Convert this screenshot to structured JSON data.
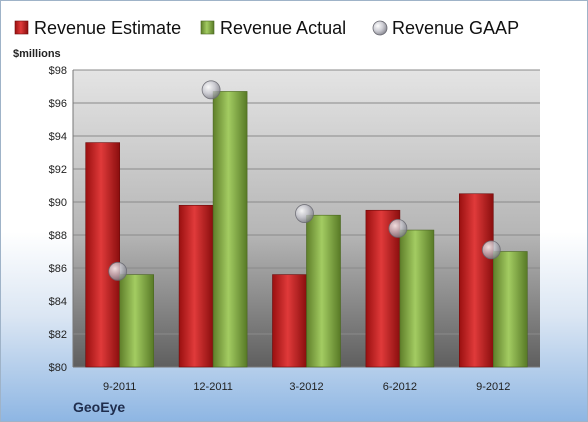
{
  "company": "GeoEye",
  "colors": {
    "estimate": "#cc2222",
    "actual": "#8cb84a",
    "gaap": "#b8b8c0"
  },
  "chart_data": {
    "type": "bar",
    "title": "",
    "xlabel": "",
    "ylabel": "$millions",
    "ylim": [
      80,
      98
    ],
    "yticks": [
      "$80",
      "$82",
      "$84",
      "$86",
      "$88",
      "$90",
      "$92",
      "$94",
      "$96",
      "$98"
    ],
    "grid": true,
    "legend_position": "top",
    "categories": [
      "9-2011",
      "12-2011",
      "3-2012",
      "6-2012",
      "9-2012"
    ],
    "series": [
      {
        "name": "Revenue Estimate",
        "kind": "bar",
        "values": [
          93.6,
          89.8,
          85.6,
          89.5,
          90.5
        ]
      },
      {
        "name": "Revenue Actual",
        "kind": "bar",
        "values": [
          85.6,
          96.7,
          89.2,
          88.3,
          87.0
        ]
      },
      {
        "name": "Revenue GAAP",
        "kind": "marker",
        "values": [
          85.8,
          96.8,
          89.3,
          88.4,
          87.1
        ]
      }
    ]
  }
}
